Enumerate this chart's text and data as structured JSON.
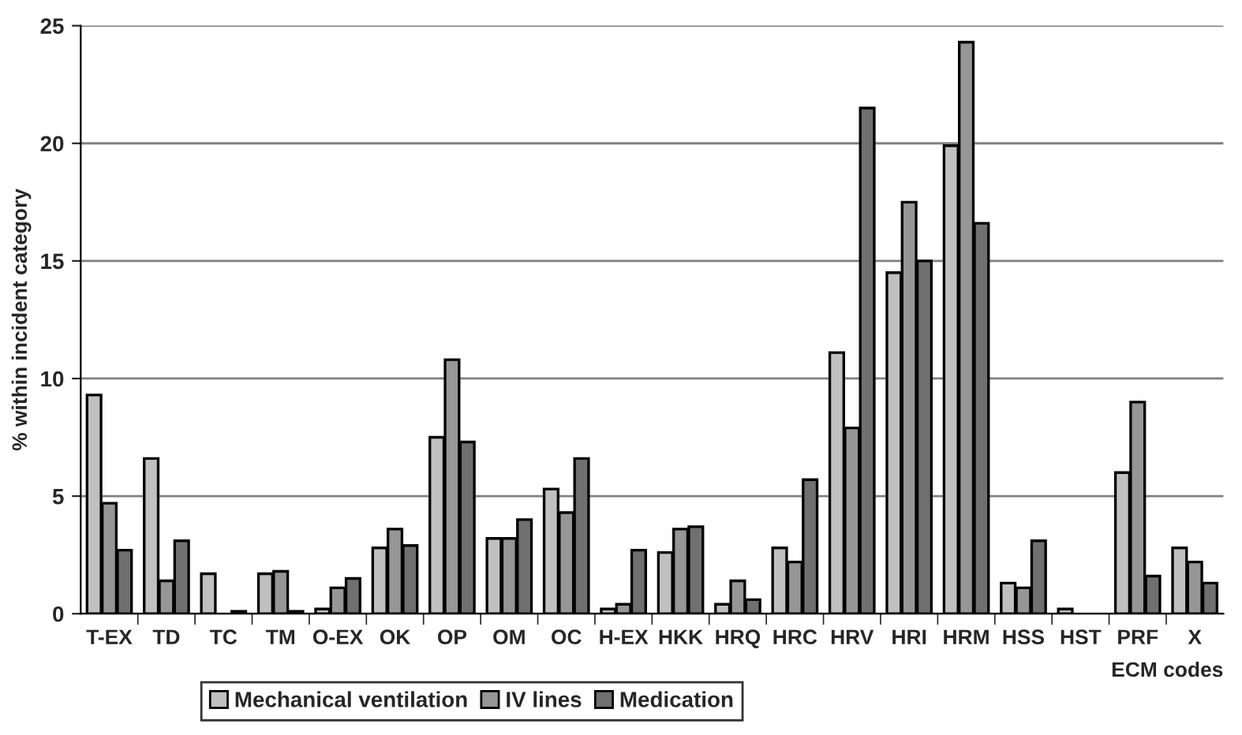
{
  "chart_data": {
    "type": "bar",
    "xlabel": "ECM codes",
    "ylabel": "% within incident category",
    "categories": [
      "T-EX",
      "TD",
      "TC",
      "TM",
      "O-EX",
      "OK",
      "OP",
      "OM",
      "OC",
      "H-EX",
      "HKK",
      "HRQ",
      "HRC",
      "HRV",
      "HRI",
      "HRM",
      "HSS",
      "HST",
      "PRF",
      "X"
    ],
    "series": [
      {
        "name": "Mechanical ventilation",
        "color": "#c0c0c0",
        "values": [
          9.3,
          6.6,
          1.7,
          1.7,
          0.2,
          2.8,
          7.5,
          3.2,
          5.3,
          0.2,
          2.6,
          0.4,
          2.8,
          11.1,
          14.5,
          19.9,
          1.3,
          0.2,
          6.0,
          2.8
        ]
      },
      {
        "name": "IV lines",
        "color": "#969696",
        "values": [
          4.7,
          1.4,
          null,
          1.8,
          1.1,
          3.6,
          10.8,
          3.2,
          4.3,
          0.4,
          3.6,
          1.4,
          2.2,
          7.9,
          17.5,
          24.3,
          1.1,
          null,
          9.0,
          2.2
        ]
      },
      {
        "name": "Medication",
        "color": "#707070",
        "values": [
          2.7,
          3.1,
          0.1,
          0.1,
          1.5,
          2.9,
          7.3,
          4.0,
          6.6,
          2.7,
          3.7,
          0.6,
          5.7,
          21.5,
          15.0,
          16.6,
          3.1,
          null,
          1.6,
          1.3
        ]
      }
    ],
    "ylim": [
      0,
      25
    ],
    "yticks": [
      0,
      5,
      10,
      15,
      20,
      25
    ],
    "grid": "y",
    "legend": "bottom"
  }
}
